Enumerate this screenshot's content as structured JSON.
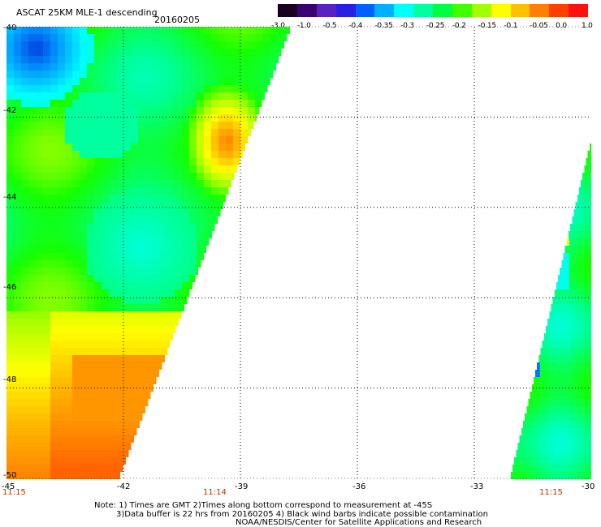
{
  "header": {
    "title": "ASCAT 25KM MLE-1 descending",
    "date": "20160205"
  },
  "colorbar": {
    "labels": [
      "-3.0",
      "-1.0",
      "-0.5",
      "-0.4",
      "-0.35",
      "-0.3",
      "-0.25",
      "-0.2",
      "-0.15",
      "-0.1",
      "-0.05",
      "0.0",
      "1.0"
    ],
    "colors": [
      "#1a0020",
      "#3a0070",
      "#5a20c0",
      "#2a20e0",
      "#0060ff",
      "#00b0ff",
      "#00ffff",
      "#00ffa0",
      "#00ff40",
      "#40ff00",
      "#a0ff00",
      "#ffff00",
      "#ffc000",
      "#ff8000",
      "#ff4000",
      "#ff1010"
    ]
  },
  "axes": {
    "lat_labels": [
      "-40",
      "-42",
      "-44",
      "-46",
      "-48",
      "-50"
    ],
    "lon_labels": [
      "-45",
      "-42",
      "-39",
      "-36",
      "-33",
      "-30"
    ],
    "times": [
      "11:15",
      "11:14",
      "11:15"
    ]
  },
  "notes": {
    "line1": "Note: 1) Times are GMT 2)Times along bottom correspond to measurement at -45S",
    "line2": "3)Data buffer is 22 hrs from 20160205 4) Black wind barbs indicate possible contamination",
    "line3": "NOAA/NESDIS/Center for Satellite Applications and Research"
  },
  "map": {
    "lat_range": [
      -50,
      -40
    ],
    "lon_range": [
      -45,
      -30
    ],
    "gridlines": "dotted"
  }
}
